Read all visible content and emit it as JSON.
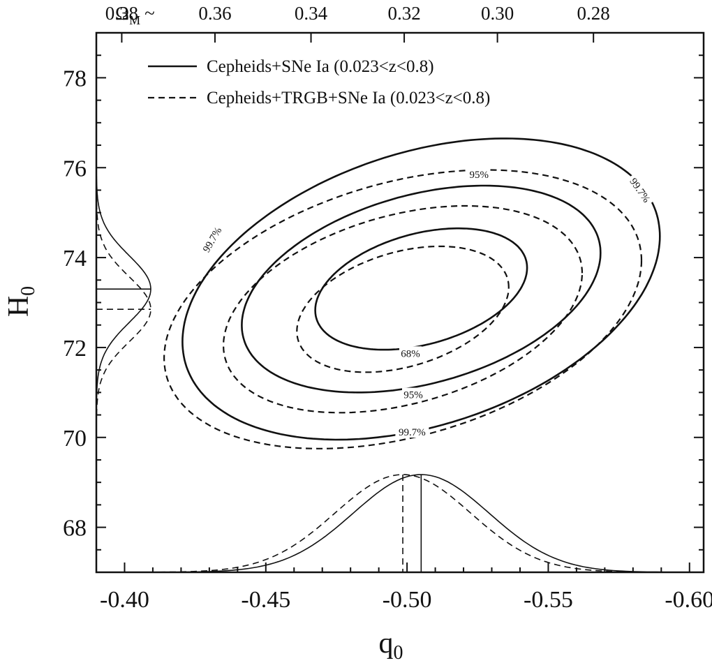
{
  "chart_data": {
    "type": "contour",
    "xlabel": "q",
    "xlabel_sub": "0",
    "ylabel": "H",
    "ylabel_sub": "0",
    "xlim": [
      -0.39,
      -0.605
    ],
    "ylim": [
      67,
      79
    ],
    "x_ticks": [
      -0.4,
      -0.45,
      -0.5,
      -0.55,
      -0.6
    ],
    "x_tick_labels": [
      "-0.40",
      "-0.45",
      "-0.50",
      "-0.55",
      "-0.60"
    ],
    "y_ticks": [
      68,
      70,
      72,
      74,
      76,
      78
    ],
    "y_tick_labels": [
      "68",
      "70",
      "72",
      "74",
      "76",
      "78"
    ],
    "top_axis": {
      "label": "Ω",
      "label_sub": "M",
      "label_suffix": "~",
      "ticks_q0": [
        -0.399,
        -0.432,
        -0.466,
        -0.499,
        -0.532,
        -0.566
      ],
      "tick_labels": [
        "0.38",
        "0.36",
        "0.34",
        "0.32",
        "0.30",
        "0.28"
      ]
    },
    "legend": {
      "placement": "top",
      "entries": [
        {
          "style": "solid",
          "label": "Cepheids+SNe Ia (0.023<z<0.8)"
        },
        {
          "style": "dashed",
          "label": "Cepheids+TRGB+SNe Ia (0.023<z<0.8)"
        }
      ]
    },
    "series": [
      {
        "name": "Cepheids+SNe Ia (0.023<z<0.8)",
        "style": "solid",
        "center": {
          "q0": -0.505,
          "H0": 73.3
        },
        "contours": [
          {
            "level": "68%",
            "q0_halfwidth": 0.0375,
            "H0_halfwidth": 1.35,
            "tilt": 0.35
          },
          {
            "level": "95%",
            "q0_halfwidth": 0.0635,
            "H0_halfwidth": 2.3,
            "tilt": 0.35
          },
          {
            "level": "99.7%",
            "q0_halfwidth": 0.0845,
            "H0_halfwidth": 3.35,
            "tilt": 0.35
          }
        ],
        "marginal_q0": {
          "peak": -0.505,
          "sigma": 0.024
        },
        "marginal_H0": {
          "peak": 73.3,
          "sigma": 0.74
        }
      },
      {
        "name": "Cepheids+TRGB+SNe Ia (0.023<z<0.8)",
        "style": "dashed",
        "center": {
          "q0": -0.4985,
          "H0": 72.85
        },
        "contours": [
          {
            "level": "68%",
            "q0_halfwidth": 0.0375,
            "H0_halfwidth": 1.4,
            "tilt": 0.35
          },
          {
            "level": "95%",
            "q0_halfwidth": 0.0635,
            "H0_halfwidth": 2.3,
            "tilt": 0.35
          },
          {
            "level": "99.7%",
            "q0_halfwidth": 0.0845,
            "H0_halfwidth": 3.1,
            "tilt": 0.35
          }
        ],
        "marginal_q0": {
          "peak": -0.4985,
          "sigma": 0.024
        },
        "marginal_H0": {
          "peak": 72.85,
          "sigma": 0.72
        }
      }
    ],
    "contour_labels": [
      {
        "text": "99.7%",
        "q0": -0.431,
        "H0": 74.4,
        "angle": -60
      },
      {
        "text": "95%",
        "q0": -0.5255,
        "H0": 75.85,
        "angle": 0
      },
      {
        "text": "99.7%",
        "q0": -0.5825,
        "H0": 75.5,
        "angle": 55
      },
      {
        "text": "68%",
        "q0": -0.5012,
        "H0": 71.87,
        "angle": 0
      },
      {
        "text": "95%",
        "q0": -0.5022,
        "H0": 70.95,
        "angle": 0
      },
      {
        "text": "99.7%",
        "q0": -0.5018,
        "H0": 70.12,
        "angle": 0
      }
    ]
  }
}
